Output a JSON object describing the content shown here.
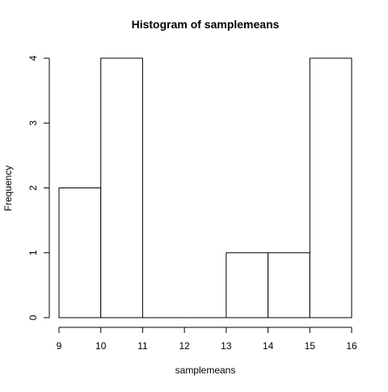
{
  "chart_data": {
    "type": "bar",
    "subtype": "histogram",
    "title": "Histogram of samplemeans",
    "xlabel": "samplemeans",
    "ylabel": "Frequency",
    "bins": [
      {
        "from": 9,
        "to": 10,
        "count": 2
      },
      {
        "from": 10,
        "to": 11,
        "count": 4
      },
      {
        "from": 11,
        "to": 12,
        "count": 0
      },
      {
        "from": 12,
        "to": 13,
        "count": 0
      },
      {
        "from": 13,
        "to": 14,
        "count": 1
      },
      {
        "from": 14,
        "to": 15,
        "count": 1
      },
      {
        "from": 15,
        "to": 16,
        "count": 4
      }
    ],
    "x_ticks": [
      9,
      10,
      11,
      12,
      13,
      14,
      15,
      16
    ],
    "y_ticks": [
      0,
      1,
      2,
      3,
      4
    ],
    "xlim": [
      9,
      16
    ],
    "ylim": [
      0,
      4
    ],
    "grid": false,
    "legend": "none",
    "colors": {
      "bar_fill": "#ffffff",
      "bar_stroke": "#000000"
    }
  }
}
